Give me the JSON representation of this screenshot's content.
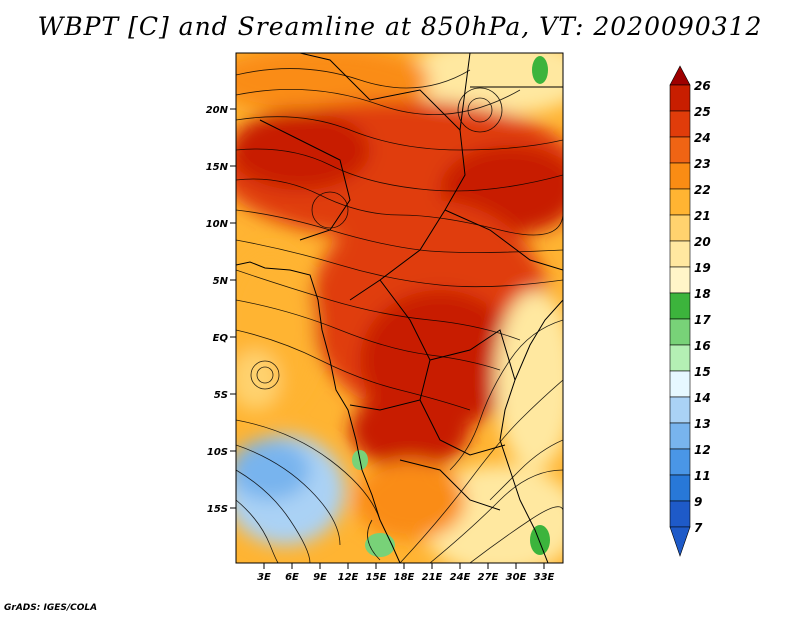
{
  "title": "WBPT [C] and Sreamline at 850hPa, VT: 2020090312",
  "credit": "GrADS: IGES/COLA",
  "lat_labels": [
    "20N",
    "15N",
    "10N",
    "5N",
    "EQ",
    "5S",
    "10S",
    "15S"
  ],
  "lon_labels": [
    "3E",
    "6E",
    "9E",
    "12E",
    "15E",
    "18E",
    "21E",
    "24E",
    "27E",
    "30E",
    "33E"
  ],
  "colorbar": {
    "labels": [
      "26",
      "25",
      "24",
      "23",
      "22",
      "21",
      "20",
      "19",
      "18",
      "17",
      "16",
      "15",
      "14",
      "13",
      "12",
      "11",
      "9",
      "7"
    ],
    "colors": [
      "#9e0000",
      "#c81e00",
      "#e03c0a",
      "#f06414",
      "#fa8c14",
      "#ffb432",
      "#ffd26e",
      "#ffe8a0",
      "#fff5c8",
      "#3cb43c",
      "#78d278",
      "#b4f0b4",
      "#e6f8ff",
      "#aad2f5",
      "#78b4ee",
      "#4a96e6",
      "#2878d8",
      "#1e5ac8"
    ]
  },
  "field_colors": {
    "hot": "#c81e00",
    "warm": "#e03c0a",
    "orange": "#fa8c14",
    "light_orange": "#ffb432",
    "pale": "#ffe8a0",
    "green": "#78d278",
    "blue": "#aad2f5"
  }
}
